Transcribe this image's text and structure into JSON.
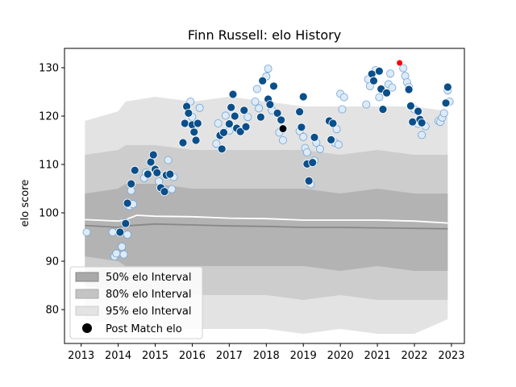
{
  "chart_data": {
    "type": "scatter",
    "title": "Finn Russell: elo History",
    "xlabel": "",
    "ylabel": "elo score",
    "xlim": [
      2012.55,
      2023.35
    ],
    "ylim": [
      73,
      134
    ],
    "xticks": [
      2013,
      2014,
      2015,
      2016,
      2017,
      2018,
      2019,
      2020,
      2021,
      2022,
      2023
    ],
    "yticks": [
      80,
      90,
      100,
      110,
      120,
      130
    ],
    "legend_position": "lower-left",
    "legend": [
      {
        "label": "50% elo Interval",
        "color": "#a9a9a9"
      },
      {
        "label": "80% elo Interval",
        "color": "#c4c4c4"
      },
      {
        "label": "95% elo Interval",
        "color": "#e3e3e3"
      },
      {
        "label": "Post Match elo",
        "color": "#000000"
      }
    ],
    "colors": {
      "band95": "#e3e3e3",
      "band80": "#cdcdcd",
      "band50": "#b3b3b3",
      "median_line": "#888888",
      "mean_line": "#ffffff",
      "point_dark": "#0b4f8a",
      "point_light": "#ddeaf7",
      "point_edge": "#ffffff",
      "highlight": "#ff0000"
    },
    "bands": {
      "x": [
        2013.1,
        2014.0,
        2014.2,
        2015.0,
        2016.0,
        2017.0,
        2018.0,
        2019.0,
        2020.0,
        2021.0,
        2022.0,
        2022.9
      ],
      "p95_upper": [
        119,
        121,
        123,
        124,
        123,
        124,
        123,
        122,
        122,
        122,
        122,
        121
      ],
      "p80_upper": [
        112,
        113,
        114,
        114,
        113,
        113,
        113,
        113,
        112,
        113,
        112,
        112
      ],
      "p50_upper": [
        104,
        105,
        106,
        106,
        105,
        105,
        105,
        105,
        104,
        105,
        104,
        104
      ],
      "p50_lower": [
        91,
        90,
        89,
        89,
        89,
        89,
        89,
        89,
        88,
        89,
        88,
        88
      ],
      "p80_lower": [
        85,
        84,
        83,
        83,
        83,
        83,
        83,
        82,
        83,
        82,
        82,
        82
      ],
      "p95_lower": [
        78,
        77,
        76,
        76,
        76,
        76,
        76,
        75,
        76,
        75,
        75,
        78
      ]
    },
    "median_line": {
      "x": [
        2013.1,
        2014.0,
        2014.2,
        2015.0,
        2016.0,
        2017.0,
        2018.0,
        2019.0,
        2020.0,
        2021.0,
        2022.0,
        2022.9
      ],
      "y": [
        97.4,
        97.0,
        97.3,
        97.7,
        97.5,
        97.3,
        97.2,
        97.0,
        97.0,
        96.9,
        96.8,
        96.7
      ]
    },
    "mean_line": {
      "x": [
        2013.1,
        2014.0,
        2014.2,
        2014.5,
        2015.0,
        2016.0,
        2017.0,
        2018.0,
        2019.0,
        2020.0,
        2021.0,
        2022.0,
        2022.9
      ],
      "y": [
        98.6,
        98.3,
        98.6,
        99.5,
        99.3,
        99.2,
        98.9,
        98.8,
        98.5,
        98.5,
        98.5,
        98.3,
        97.9
      ]
    },
    "points_dark": [
      [
        2014.05,
        96.0
      ],
      [
        2014.2,
        97.8
      ],
      [
        2014.25,
        102.0
      ],
      [
        2014.35,
        106.0
      ],
      [
        2014.45,
        108.8
      ],
      [
        2014.8,
        108.0
      ],
      [
        2014.88,
        110.5
      ],
      [
        2014.95,
        112.0
      ],
      [
        2015.0,
        109.0
      ],
      [
        2015.05,
        108.3
      ],
      [
        2015.15,
        105.2
      ],
      [
        2015.25,
        104.4
      ],
      [
        2015.3,
        107.8
      ],
      [
        2015.4,
        108.0
      ],
      [
        2015.75,
        114.5
      ],
      [
        2015.8,
        118.5
      ],
      [
        2015.85,
        122.0
      ],
      [
        2015.9,
        120.6
      ],
      [
        2016.0,
        118.2
      ],
      [
        2016.05,
        116.7
      ],
      [
        2016.1,
        115.0
      ],
      [
        2016.15,
        118.5
      ],
      [
        2016.75,
        116.0
      ],
      [
        2016.8,
        113.2
      ],
      [
        2016.85,
        116.6
      ],
      [
        2017.0,
        118.4
      ],
      [
        2017.05,
        121.8
      ],
      [
        2017.1,
        124.5
      ],
      [
        2017.15,
        120.0
      ],
      [
        2017.2,
        117.5
      ],
      [
        2017.3,
        116.8
      ],
      [
        2017.4,
        121.2
      ],
      [
        2017.45,
        117.8
      ],
      [
        2017.85,
        119.8
      ],
      [
        2017.9,
        127.3
      ],
      [
        2018.05,
        123.5
      ],
      [
        2018.1,
        122.4
      ],
      [
        2018.2,
        126.2
      ],
      [
        2018.3,
        120.6
      ],
      [
        2018.4,
        119.2
      ],
      [
        2018.45,
        117.4
      ],
      [
        2018.9,
        120.9
      ],
      [
        2018.95,
        117.7
      ],
      [
        2019.0,
        124.0
      ],
      [
        2019.1,
        110.1
      ],
      [
        2019.15,
        106.6
      ],
      [
        2019.25,
        110.4
      ],
      [
        2019.3,
        115.6
      ],
      [
        2019.7,
        119.0
      ],
      [
        2019.75,
        115.1
      ],
      [
        2019.8,
        118.5
      ],
      [
        2020.85,
        128.7
      ],
      [
        2020.9,
        127.3
      ],
      [
        2021.05,
        129.3
      ],
      [
        2021.1,
        125.6
      ],
      [
        2021.15,
        121.4
      ],
      [
        2021.25,
        124.8
      ],
      [
        2021.85,
        125.5
      ],
      [
        2021.9,
        122.1
      ],
      [
        2021.95,
        118.8
      ],
      [
        2022.1,
        121.0
      ],
      [
        2022.15,
        119.3
      ],
      [
        2022.2,
        118.6
      ],
      [
        2022.85,
        122.7
      ],
      [
        2022.9,
        126.0
      ]
    ],
    "points_light": [
      [
        2013.15,
        96.0
      ],
      [
        2013.85,
        96.0
      ],
      [
        2013.9,
        91.0
      ],
      [
        2013.95,
        91.6
      ],
      [
        2014.1,
        93.0
      ],
      [
        2014.15,
        91.4
      ],
      [
        2014.2,
        98.0
      ],
      [
        2014.25,
        95.5
      ],
      [
        2014.3,
        101.4
      ],
      [
        2014.35,
        104.6
      ],
      [
        2014.4,
        101.8
      ],
      [
        2014.7,
        107.2
      ],
      [
        2014.75,
        108.3
      ],
      [
        2015.1,
        106.5
      ],
      [
        2015.2,
        104.8
      ],
      [
        2015.35,
        110.9
      ],
      [
        2015.45,
        104.9
      ],
      [
        2015.5,
        107.4
      ],
      [
        2015.95,
        123.0
      ],
      [
        2016.0,
        119.8
      ],
      [
        2016.05,
        117.8
      ],
      [
        2016.2,
        121.7
      ],
      [
        2016.65,
        114.3
      ],
      [
        2016.7,
        118.5
      ],
      [
        2016.9,
        120.1
      ],
      [
        2017.0,
        117.0
      ],
      [
        2017.5,
        119.8
      ],
      [
        2017.7,
        123.0
      ],
      [
        2017.75,
        125.6
      ],
      [
        2017.8,
        121.6
      ],
      [
        2018.0,
        128.2
      ],
      [
        2018.05,
        129.8
      ],
      [
        2018.15,
        121.2
      ],
      [
        2018.35,
        116.6
      ],
      [
        2018.45,
        115.0
      ],
      [
        2018.9,
        116.9
      ],
      [
        2019.0,
        115.7
      ],
      [
        2019.05,
        113.4
      ],
      [
        2019.1,
        112.5
      ],
      [
        2019.2,
        105.9
      ],
      [
        2019.3,
        110.8
      ],
      [
        2019.35,
        114.5
      ],
      [
        2019.45,
        113.2
      ],
      [
        2019.85,
        114.5
      ],
      [
        2019.9,
        117.3
      ],
      [
        2019.95,
        114.1
      ],
      [
        2020.0,
        124.6
      ],
      [
        2020.05,
        121.4
      ],
      [
        2020.1,
        123.9
      ],
      [
        2020.7,
        122.4
      ],
      [
        2020.75,
        127.6
      ],
      [
        2020.8,
        126.2
      ],
      [
        2020.95,
        129.5
      ],
      [
        2021.05,
        123.9
      ],
      [
        2021.3,
        126.6
      ],
      [
        2021.35,
        128.8
      ],
      [
        2021.4,
        125.9
      ],
      [
        2021.7,
        129.9
      ],
      [
        2021.75,
        128.3
      ],
      [
        2021.8,
        127.0
      ],
      [
        2021.85,
        126.0
      ],
      [
        2022.0,
        121.4
      ],
      [
        2022.1,
        118.4
      ],
      [
        2022.2,
        116.1
      ],
      [
        2022.3,
        117.9
      ],
      [
        2022.65,
        119.0
      ],
      [
        2022.7,
        118.8
      ],
      [
        2022.75,
        119.7
      ],
      [
        2022.8,
        120.6
      ],
      [
        2022.9,
        125.3
      ],
      [
        2022.95,
        123.0
      ]
    ],
    "point_black": [
      2018.45,
      117.4
    ],
    "point_highlight": [
      2021.6,
      131.0
    ]
  }
}
